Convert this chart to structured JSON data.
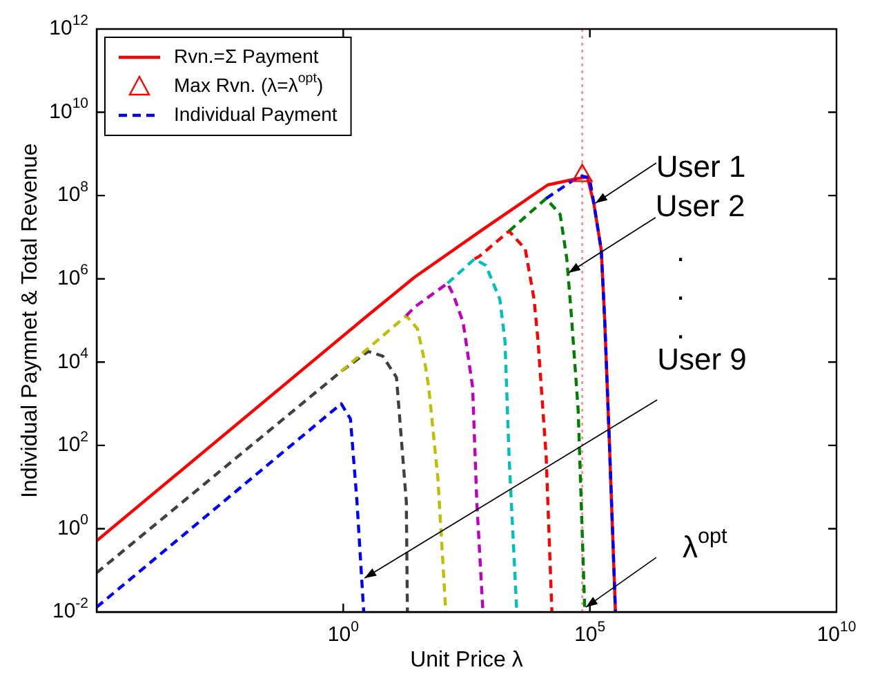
{
  "chart_data": {
    "type": "line",
    "xlabel": "Unit Price λ",
    "ylabel": "Individual Paymnet & Total Revenue",
    "log": "xy",
    "grid": false,
    "legend": "top left",
    "xlim": [
      1e-05,
      10000000000.0
    ],
    "ylim": [
      0.01,
      1000000000000.0
    ],
    "xticks": [
      {
        "value": 1e-05,
        "label": null
      },
      {
        "value": 1,
        "label": "10$^{0}$"
      },
      {
        "value": 100000.0,
        "label": "10$^{5}$"
      },
      {
        "value": 10000000000.0,
        "label": "10$^{10}$"
      }
    ],
    "yticks": [
      {
        "value": 0.01,
        "label": "10$^{-2}$"
      },
      {
        "value": 1,
        "label": "10$^{0}$"
      },
      {
        "value": 100,
        "label": "10$^{2}$"
      },
      {
        "value": 10000.0,
        "label": "10$^{4}$"
      },
      {
        "value": 1000000.0,
        "label": "10$^{6}$"
      },
      {
        "value": 100000000.0,
        "label": "10$^{8}$"
      },
      {
        "value": 10000000000.0,
        "label": "10$^{10}$"
      },
      {
        "value": 1000000000000.0,
        "label": "10$^{12}$"
      }
    ],
    "series": [
      {
        "name": "Rvn.=Σ Payment",
        "color": "#ff0000",
        "line_style": "solid",
        "marker": "none",
        "x": [
          1e-05,
          2.6,
          28,
          710,
          14000.0,
          51000.0,
          89000.0,
          120000.0,
          170000.0,
          200000.0,
          250000.0,
          330000.0
        ],
        "values": [
          0.51,
          110000.0,
          1100000.0,
          16000000.0,
          180000000.0,
          250000000.0,
          280000000.0,
          66000000.0,
          5000000.0,
          100000.0,
          100,
          0.01
        ]
      },
      {
        "name": "Max Rvn. (λ=λ$^{opt}$)",
        "type": "scatter",
        "color": "#ff0000",
        "marker": "triangle",
        "x": [
          70000.0
        ],
        "values": [
          300000000.0
        ]
      },
      {
        "name": "Individual Payment",
        "color": "#0000ff",
        "line_style": "dashed",
        "marker": "none",
        "x": [
          13000.0,
          63000.0,
          98000.0,
          120000.0,
          170000.0,
          200000.0,
          250000.0,
          330000.0
        ],
        "values": [
          85000000.0,
          300000000.0,
          270000000.0,
          66000000.0,
          5000000.0,
          100000.0,
          100,
          0.01
        ]
      },
      {
        "color": "#008000",
        "line_style": "dashed",
        "marker": "none",
        "x": [
          2300,
          13000.0,
          25000.0,
          34000.0,
          42000.0,
          58000.0,
          79000.0
        ],
        "values": [
          14000000.0,
          85000000.0,
          35000000.0,
          3100000.0,
          140000.0,
          690,
          0.01
        ]
      },
      {
        "color": "#ff0000",
        "line_style": "dashed",
        "marker": "none",
        "x": [
          460,
          580,
          2300,
          4900,
          7400,
          8900,
          13000.0,
          17000.0
        ],
        "values": [
          3000000.0,
          3500000.0,
          14000000.0,
          5200000.0,
          320000.0,
          32000.0,
          55,
          0.01
        ]
      },
      {
        "color": "#00bfbf",
        "line_style": "dashed",
        "marker": "none",
        "x": [
          130,
          460,
          780,
          1500,
          1900,
          2300,
          3300
        ],
        "values": [
          780000.0,
          3000000.0,
          2100000.0,
          320000.0,
          32000.0,
          55,
          0.01
        ]
      },
      {
        "color": "#bf00bf",
        "line_style": "dashed",
        "marker": "none",
        "x": [
          19,
          28,
          130,
          170,
          270,
          420,
          510,
          680
        ],
        "values": [
          130000.0,
          210000.0,
          780000.0,
          420000.0,
          89000.0,
          2500,
          4.4,
          0.01
        ]
      },
      {
        "color": "#bfbf00",
        "line_style": "dashed",
        "marker": "none",
        "x": [
          0.91,
          19,
          32,
          45,
          54,
          83,
          120
        ],
        "values": [
          6000,
          130000.0,
          63000.0,
          10000.0,
          2500,
          16,
          0.01
        ]
      },
      {
        "color": "#404040",
        "line_style": "dashed",
        "marker": "none",
        "x": [
          1e-05,
          0.91,
          3.2,
          6.3,
          12,
          19,
          20
        ],
        "values": [
          0.087,
          6000,
          18000.0,
          14000.0,
          4300,
          4.4,
          0.01
        ]
      },
      {
        "color": "#0000ff",
        "line_style": "dashed",
        "marker": "none",
        "x": [
          1e-05,
          0.91,
          1.4,
          1.9,
          2.6
        ],
        "values": [
          0.013,
          1000,
          430,
          4.4,
          0.01
        ]
      }
    ],
    "ref_lines": [
      {
        "axis": "x",
        "value": 70000.0,
        "color": "#ff8080",
        "line_style": "dotted"
      }
    ],
    "annotations": [
      {
        "text": "User 1",
        "x": 130000.0,
        "y": 66000000.0
      },
      {
        "text": "User 2",
        "x": 37000.0,
        "y": 1400000.0
      },
      ".",
      ".",
      ".",
      {
        "text": "User 9",
        "x": 2.7,
        "y": 0.065
      },
      {
        "text": "λ$^{opt}$",
        "x": 83000.0,
        "y": 0.013
      }
    ]
  }
}
